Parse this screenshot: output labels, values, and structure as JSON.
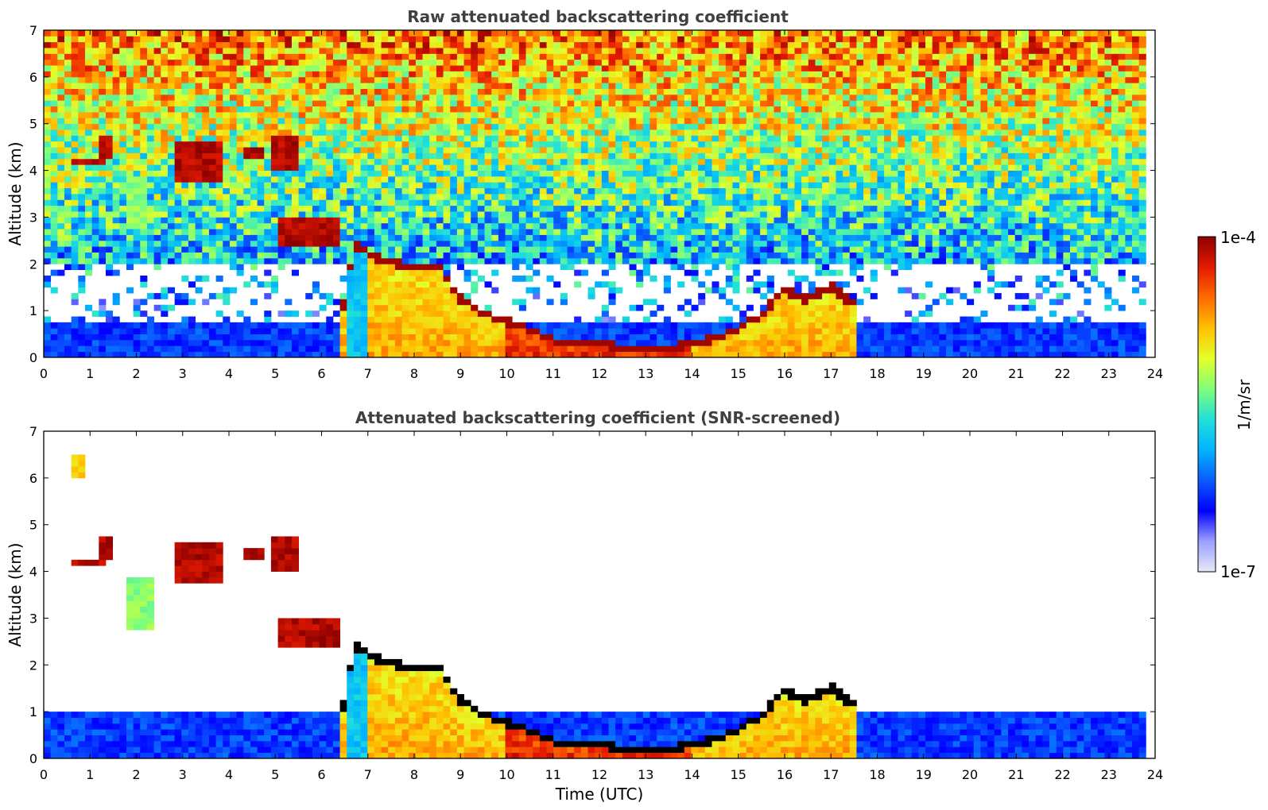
{
  "chart_data": [
    {
      "type": "heatmap",
      "title": "Raw attenuated backscattering coefficient",
      "xlabel": "",
      "ylabel": "Altitude (km)",
      "xlim": [
        0,
        24
      ],
      "ylim": [
        0,
        7
      ],
      "x_ticks": [
        "0",
        "1",
        "2",
        "3",
        "4",
        "5",
        "6",
        "7",
        "8",
        "9",
        "10",
        "11",
        "12",
        "13",
        "14",
        "15",
        "16",
        "17",
        "18",
        "19",
        "20",
        "21",
        "22",
        "23",
        "24"
      ],
      "y_ticks": [
        "0",
        "1",
        "2",
        "3",
        "4",
        "5",
        "6",
        "7"
      ],
      "data_extent_x": [
        0,
        23.8
      ],
      "noise": "high",
      "background": {
        "surface_km": 0.8,
        "noise_low_km": 2.0
      },
      "cloud_layers": [
        {
          "x": [
            0.55,
            0.95
          ],
          "y": [
            6.0,
            6.6
          ],
          "level": 0.9
        },
        {
          "x": [
            0.6,
            1.35
          ],
          "y": [
            4.1,
            4.22
          ],
          "level": 1.0
        },
        {
          "x": [
            1.2,
            1.45
          ],
          "y": [
            4.3,
            4.8
          ],
          "level": 1.0
        },
        {
          "x": [
            1.8,
            2.3
          ],
          "y": [
            2.8,
            3.9
          ],
          "level": 0.6
        },
        {
          "x": [
            2.8,
            3.8
          ],
          "y": [
            3.7,
            4.6
          ],
          "level": 1.0
        },
        {
          "x": [
            4.3,
            4.8
          ],
          "y": [
            4.25,
            4.55
          ],
          "level": 1.0
        },
        {
          "x": [
            4.95,
            5.55
          ],
          "y": [
            4.05,
            4.7
          ],
          "level": 1.0
        },
        {
          "x": [
            5.0,
            6.35
          ],
          "y": [
            2.35,
            2.95
          ],
          "level": 1.0
        }
      ],
      "boundary_layer": [
        [
          6.4,
          0.8
        ],
        [
          6.7,
          2.5
        ],
        [
          7.2,
          2.2
        ],
        [
          8.0,
          2.0
        ],
        [
          8.6,
          2.0
        ],
        [
          8.9,
          1.4
        ],
        [
          9.5,
          1.0
        ],
        [
          10.0,
          0.85
        ],
        [
          10.5,
          0.65
        ],
        [
          11.0,
          0.45
        ],
        [
          11.5,
          0.35
        ],
        [
          12.0,
          0.35
        ],
        [
          12.5,
          0.3
        ],
        [
          13.0,
          0.3
        ],
        [
          13.5,
          0.3
        ],
        [
          14.0,
          0.35
        ],
        [
          14.5,
          0.5
        ],
        [
          15.0,
          0.7
        ],
        [
          15.5,
          1.0
        ],
        [
          16.0,
          1.5
        ],
        [
          16.5,
          1.3
        ],
        [
          17.0,
          1.6
        ],
        [
          17.5,
          1.2
        ]
      ]
    },
    {
      "type": "heatmap",
      "title": "Attenuated backscattering coefficient (SNR-screened)",
      "xlabel": "Time (UTC)",
      "ylabel": "Altitude (km)",
      "xlim": [
        0,
        24
      ],
      "ylim": [
        0,
        7
      ],
      "x_ticks": [
        "0",
        "1",
        "2",
        "3",
        "4",
        "5",
        "6",
        "7",
        "8",
        "9",
        "10",
        "11",
        "12",
        "13",
        "14",
        "15",
        "16",
        "17",
        "18",
        "19",
        "20",
        "21",
        "22",
        "23",
        "24"
      ],
      "y_ticks": [
        "0",
        "1",
        "2",
        "3",
        "4",
        "5",
        "6",
        "7"
      ],
      "data_extent_x": [
        0,
        23.8
      ],
      "noise": "none",
      "background": {
        "surface_km": 1.0,
        "noise_low_km": 0
      },
      "cloud_layers": [
        {
          "x": [
            0.6,
            0.95
          ],
          "y": [
            6.0,
            6.55
          ],
          "level": 0.75
        },
        {
          "x": [
            0.6,
            1.35
          ],
          "y": [
            4.1,
            4.22
          ],
          "level": 1.0
        },
        {
          "x": [
            1.2,
            1.45
          ],
          "y": [
            4.3,
            4.8
          ],
          "level": 1.0
        },
        {
          "x": [
            1.8,
            2.35
          ],
          "y": [
            2.8,
            3.9
          ],
          "level": 0.6
        },
        {
          "x": [
            2.8,
            3.8
          ],
          "y": [
            3.7,
            4.6
          ],
          "level": 1.0
        },
        {
          "x": [
            4.3,
            4.8
          ],
          "y": [
            4.25,
            4.55
          ],
          "level": 1.0
        },
        {
          "x": [
            4.95,
            5.55
          ],
          "y": [
            4.05,
            4.7
          ],
          "level": 1.0
        },
        {
          "x": [
            5.0,
            6.35
          ],
          "y": [
            2.35,
            2.95
          ],
          "level": 1.0
        }
      ],
      "boundary_layer": [
        [
          6.4,
          0.8
        ],
        [
          6.7,
          2.5
        ],
        [
          7.2,
          2.2
        ],
        [
          8.0,
          2.0
        ],
        [
          8.6,
          2.0
        ],
        [
          8.9,
          1.4
        ],
        [
          9.5,
          1.0
        ],
        [
          10.0,
          0.85
        ],
        [
          10.5,
          0.65
        ],
        [
          11.0,
          0.45
        ],
        [
          11.5,
          0.35
        ],
        [
          12.0,
          0.35
        ],
        [
          12.5,
          0.3
        ],
        [
          13.0,
          0.3
        ],
        [
          13.5,
          0.3
        ],
        [
          14.0,
          0.35
        ],
        [
          14.5,
          0.5
        ],
        [
          15.0,
          0.7
        ],
        [
          15.5,
          1.0
        ],
        [
          16.0,
          1.5
        ],
        [
          16.5,
          1.3
        ],
        [
          17.0,
          1.6
        ],
        [
          17.5,
          1.2
        ]
      ]
    }
  ],
  "colorbar": {
    "label": "1/m/sr",
    "max_label": "1e-4",
    "min_label": "1e-7",
    "colormap": [
      "#e8e8f8",
      "#9aa0ff",
      "#0000ff",
      "#0a5cff",
      "#00b4ff",
      "#22e0d8",
      "#7fff7a",
      "#e4ff2a",
      "#ffc000",
      "#ff6a00",
      "#e41a00",
      "#8b0000"
    ]
  }
}
